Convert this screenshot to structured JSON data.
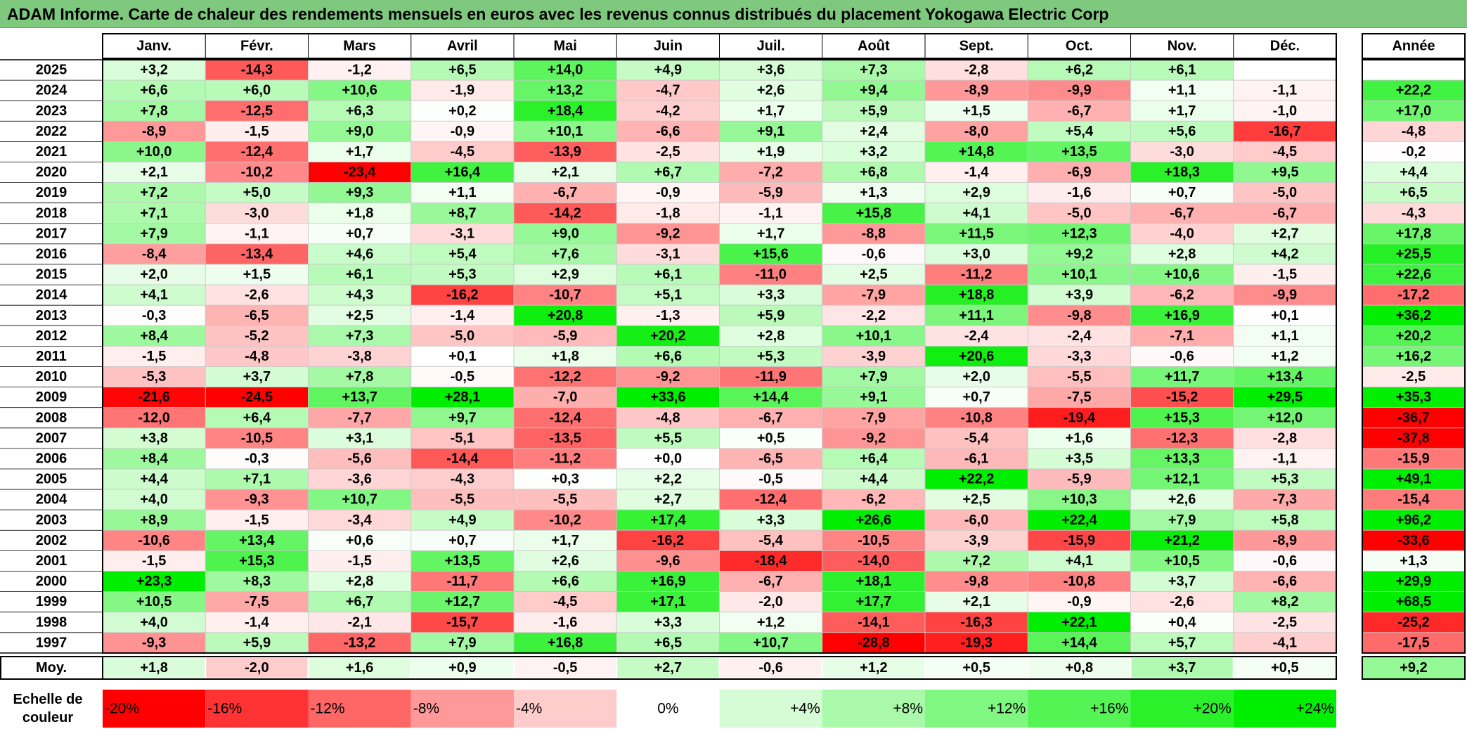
{
  "title": "ADAM Informe. Carte de chaleur des rendements mensuels en euros avec les revenus connus distribués du placement Yokogawa Electric Corp",
  "chart_data": {
    "type": "heatmap",
    "title": "ADAM Informe. Carte de chaleur des rendements mensuels en euros avec les revenus connus distribués du placement Yokogawa Electric Corp",
    "months": [
      "Janv.",
      "Févr.",
      "Mars",
      "Avril",
      "Mai",
      "Juin",
      "Juil.",
      "Août",
      "Sept.",
      "Oct.",
      "Nov.",
      "Déc."
    ],
    "year_header": "Année",
    "rows": [
      {
        "year": "2025",
        "values": [
          "+3,2",
          "-14,3",
          "-1,2",
          "+6,5",
          "+14,0",
          "+4,9",
          "+3,6",
          "+7,3",
          "-2,8",
          "+6,2",
          "+6,1",
          ""
        ],
        "annual": ""
      },
      {
        "year": "2024",
        "values": [
          "+6,6",
          "+6,0",
          "+10,6",
          "-1,9",
          "+13,2",
          "-4,7",
          "+2,6",
          "+9,4",
          "-8,9",
          "-9,9",
          "+1,1",
          "-1,1"
        ],
        "annual": "+22,2"
      },
      {
        "year": "2023",
        "values": [
          "+7,8",
          "-12,5",
          "+6,3",
          "+0,2",
          "+18,4",
          "-4,2",
          "+1,7",
          "+5,9",
          "+1,5",
          "-6,7",
          "+1,7",
          "-1,0"
        ],
        "annual": "+17,0"
      },
      {
        "year": "2022",
        "values": [
          "-8,9",
          "-1,5",
          "+9,0",
          "-0,9",
          "+10,1",
          "-6,6",
          "+9,1",
          "+2,4",
          "-8,0",
          "+5,4",
          "+5,6",
          "-16,7"
        ],
        "annual": "-4,8"
      },
      {
        "year": "2021",
        "values": [
          "+10,0",
          "-12,4",
          "+1,7",
          "-4,5",
          "-13,9",
          "-2,5",
          "+1,9",
          "+3,2",
          "+14,8",
          "+13,5",
          "-3,0",
          "-4,5"
        ],
        "annual": "-0,2"
      },
      {
        "year": "2020",
        "values": [
          "+2,1",
          "-10,2",
          "-23,4",
          "+16,4",
          "+2,1",
          "+6,7",
          "-7,2",
          "+6,8",
          "-1,4",
          "-6,9",
          "+18,3",
          "+9,5"
        ],
        "annual": "+4,4"
      },
      {
        "year": "2019",
        "values": [
          "+7,2",
          "+5,0",
          "+9,3",
          "+1,1",
          "-6,7",
          "-0,9",
          "-5,9",
          "+1,3",
          "+2,9",
          "-1,6",
          "+0,7",
          "-5,0"
        ],
        "annual": "+6,5"
      },
      {
        "year": "2018",
        "values": [
          "+7,1",
          "-3,0",
          "+1,8",
          "+8,7",
          "-14,2",
          "-1,8",
          "-1,1",
          "+15,8",
          "+4,1",
          "-5,0",
          "-6,7",
          "-6,7"
        ],
        "annual": "-4,3"
      },
      {
        "year": "2017",
        "values": [
          "+7,9",
          "-1,1",
          "+0,7",
          "-3,1",
          "+9,0",
          "-9,2",
          "+1,7",
          "-8,8",
          "+11,5",
          "+12,3",
          "-4,0",
          "+2,7"
        ],
        "annual": "+17,8"
      },
      {
        "year": "2016",
        "values": [
          "-8,4",
          "-13,4",
          "+4,6",
          "+5,4",
          "+7,6",
          "-3,1",
          "+15,6",
          "-0,6",
          "+3,0",
          "+9,2",
          "+2,8",
          "+4,2"
        ],
        "annual": "+25,5"
      },
      {
        "year": "2015",
        "values": [
          "+2,0",
          "+1,5",
          "+6,1",
          "+5,3",
          "+2,9",
          "+6,1",
          "-11,0",
          "+2,5",
          "-11,2",
          "+10,1",
          "+10,6",
          "-1,5"
        ],
        "annual": "+22,6"
      },
      {
        "year": "2014",
        "values": [
          "+4,1",
          "-2,6",
          "+4,3",
          "-16,2",
          "-10,7",
          "+5,1",
          "+3,3",
          "-7,9",
          "+18,8",
          "+3,9",
          "-6,2",
          "-9,9"
        ],
        "annual": "-17,2"
      },
      {
        "year": "2013",
        "values": [
          "-0,3",
          "-6,5",
          "+2,5",
          "-1,4",
          "+20,8",
          "-1,3",
          "+5,9",
          "-2,2",
          "+11,1",
          "-9,8",
          "+16,9",
          "+0,1"
        ],
        "annual": "+36,2"
      },
      {
        "year": "2012",
        "values": [
          "+8,4",
          "-5,2",
          "+7,3",
          "-5,0",
          "-5,9",
          "+20,2",
          "+2,8",
          "+10,1",
          "-2,4",
          "-2,4",
          "-7,1",
          "+1,1"
        ],
        "annual": "+20,2"
      },
      {
        "year": "2011",
        "values": [
          "-1,5",
          "-4,8",
          "-3,8",
          "+0,1",
          "+1,8",
          "+6,6",
          "+5,3",
          "-3,9",
          "+20,6",
          "-3,3",
          "-0,6",
          "+1,2"
        ],
        "annual": "+16,2"
      },
      {
        "year": "2010",
        "values": [
          "-5,3",
          "+3,7",
          "+7,8",
          "-0,5",
          "-12,2",
          "-9,2",
          "-11,9",
          "+7,9",
          "+2,0",
          "-5,5",
          "+11,7",
          "+13,4"
        ],
        "annual": "-2,5"
      },
      {
        "year": "2009",
        "values": [
          "-21,6",
          "-24,5",
          "+13,7",
          "+28,1",
          "-7,0",
          "+33,6",
          "+14,4",
          "+9,1",
          "+0,7",
          "-7,5",
          "-15,2",
          "+29,5"
        ],
        "annual": "+35,3"
      },
      {
        "year": "2008",
        "values": [
          "-12,0",
          "+6,4",
          "-7,7",
          "+9,7",
          "-12,4",
          "-4,8",
          "-6,7",
          "-7,9",
          "-10,8",
          "-19,4",
          "+15,3",
          "+12,0"
        ],
        "annual": "-36,7"
      },
      {
        "year": "2007",
        "values": [
          "+3,8",
          "-10,5",
          "+3,1",
          "-5,1",
          "-13,5",
          "+5,5",
          "+0,5",
          "-9,2",
          "-5,4",
          "+1,6",
          "-12,3",
          "-2,8"
        ],
        "annual": "-37,8"
      },
      {
        "year": "2006",
        "values": [
          "+8,4",
          "-0,3",
          "-5,6",
          "-14,4",
          "-11,2",
          "+0,0",
          "-6,5",
          "+6,4",
          "-6,1",
          "+3,5",
          "+13,3",
          "-1,1"
        ],
        "annual": "-15,9"
      },
      {
        "year": "2005",
        "values": [
          "+4,4",
          "+7,1",
          "-3,6",
          "-4,3",
          "+0,3",
          "+2,2",
          "-0,5",
          "+4,4",
          "+22,2",
          "-5,9",
          "+12,1",
          "+5,3"
        ],
        "annual": "+49,1"
      },
      {
        "year": "2004",
        "values": [
          "+4,0",
          "-9,3",
          "+10,7",
          "-5,5",
          "-5,5",
          "+2,7",
          "-12,4",
          "-6,2",
          "+2,5",
          "+10,3",
          "+2,6",
          "-7,3"
        ],
        "annual": "-15,4"
      },
      {
        "year": "2003",
        "values": [
          "+8,9",
          "-1,5",
          "-3,4",
          "+4,9",
          "-10,2",
          "+17,4",
          "+3,3",
          "+26,6",
          "-6,0",
          "+22,4",
          "+7,9",
          "+5,8"
        ],
        "annual": "+96,2"
      },
      {
        "year": "2002",
        "values": [
          "-10,6",
          "+13,4",
          "+0,6",
          "+0,7",
          "+1,7",
          "-16,2",
          "-5,4",
          "-10,5",
          "-3,9",
          "-15,9",
          "+21,2",
          "-8,9"
        ],
        "annual": "-33,6"
      },
      {
        "year": "2001",
        "values": [
          "-1,5",
          "+15,3",
          "-1,5",
          "+13,5",
          "+2,6",
          "-9,6",
          "-18,4",
          "-14,0",
          "+7,2",
          "+4,1",
          "+10,5",
          "-0,6"
        ],
        "annual": "+1,3"
      },
      {
        "year": "2000",
        "values": [
          "+23,3",
          "+8,3",
          "+2,8",
          "-11,7",
          "+6,6",
          "+16,9",
          "-6,7",
          "+18,1",
          "-9,8",
          "-10,8",
          "+3,7",
          "-6,6"
        ],
        "annual": "+29,9"
      },
      {
        "year": "1999",
        "values": [
          "+10,5",
          "-7,5",
          "+6,7",
          "+12,7",
          "-4,5",
          "+17,1",
          "-2,0",
          "+17,7",
          "+2,1",
          "-0,9",
          "-2,6",
          "+8,2"
        ],
        "annual": "+68,5"
      },
      {
        "year": "1998",
        "values": [
          "+4,0",
          "-1,4",
          "-2,1",
          "-15,7",
          "-1,6",
          "+3,3",
          "+1,2",
          "-14,1",
          "-16,3",
          "+22,1",
          "+0,4",
          "-2,5"
        ],
        "annual": "-25,2"
      },
      {
        "year": "1997",
        "values": [
          "-9,3",
          "+5,9",
          "-13,2",
          "+7,9",
          "+16,8",
          "+6,5",
          "+10,7",
          "-28,8",
          "-19,3",
          "+14,4",
          "+5,7",
          "-4,1"
        ],
        "annual": "-17,5"
      }
    ],
    "average": {
      "label": "Moy.",
      "values": [
        "+1,8",
        "-2,0",
        "+1,6",
        "+0,9",
        "-0,5",
        "+2,7",
        "-0,6",
        "+1,2",
        "+0,5",
        "+0,8",
        "+3,7",
        "+0,5"
      ],
      "annual": "+9,2"
    },
    "scale": {
      "label_line1": "Echelle de",
      "label_line2": "couleur",
      "stops": [
        "-20%",
        "-16%",
        "-12%",
        "-8%",
        "-4%",
        "0%",
        "+4%",
        "+8%",
        "+12%",
        "+16%",
        "+20%",
        "+24%"
      ]
    },
    "colors": {
      "title_bg": "#7fc97f",
      "neg_max": "#ff0000",
      "zero": "#ffffff",
      "pos_max": "#00ee00"
    }
  }
}
